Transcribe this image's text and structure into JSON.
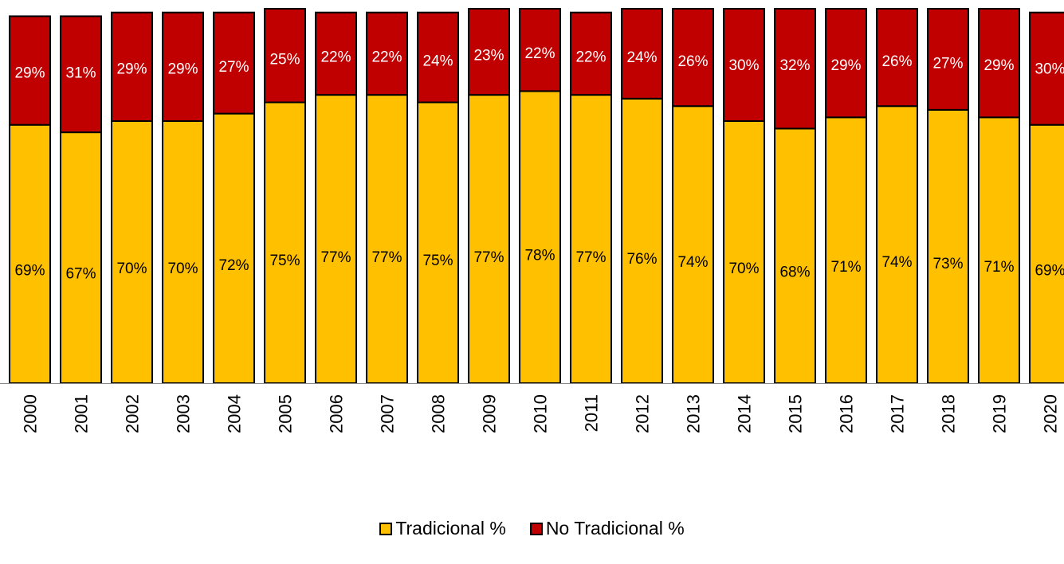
{
  "chart_data": {
    "type": "bar",
    "stacked": true,
    "categories": [
      "2000",
      "2001",
      "2002",
      "2003",
      "2004",
      "2005",
      "2006",
      "2007",
      "2008",
      "2009",
      "2010",
      "2011",
      "2012",
      "2013",
      "2014",
      "2015",
      "2016",
      "2017",
      "2018",
      "2019",
      "2020"
    ],
    "series": [
      {
        "name": "Tradicional %",
        "color": "#FFC000",
        "values": [
          69,
          67,
          70,
          70,
          72,
          75,
          77,
          77,
          75,
          77,
          78,
          77,
          76,
          74,
          70,
          68,
          71,
          74,
          73,
          71,
          69
        ],
        "labels": [
          "69%",
          "67%",
          "70%",
          "70%",
          "72%",
          "75%",
          "77%",
          "77%",
          "75%",
          "77%",
          "78%",
          "77%",
          "76%",
          "74%",
          "70%",
          "68%",
          "71%",
          "74%",
          "73%",
          "71%",
          "69%"
        ]
      },
      {
        "name": "No Tradicional %",
        "color": "#C00000",
        "values": [
          29,
          31,
          29,
          29,
          27,
          25,
          22,
          22,
          24,
          23,
          22,
          22,
          24,
          26,
          30,
          32,
          29,
          26,
          27,
          29,
          30
        ],
        "labels": [
          "29%",
          "31%",
          "29%",
          "29%",
          "27%",
          "25%",
          "22%",
          "22%",
          "24%",
          "23%",
          "22%",
          "22%",
          "24%",
          "26%",
          "30%",
          "32%",
          "29%",
          "26%",
          "27%",
          "29%",
          "30%"
        ]
      }
    ],
    "ylim": [
      0,
      100
    ],
    "legend_position": "bottom-center",
    "grid": false
  }
}
